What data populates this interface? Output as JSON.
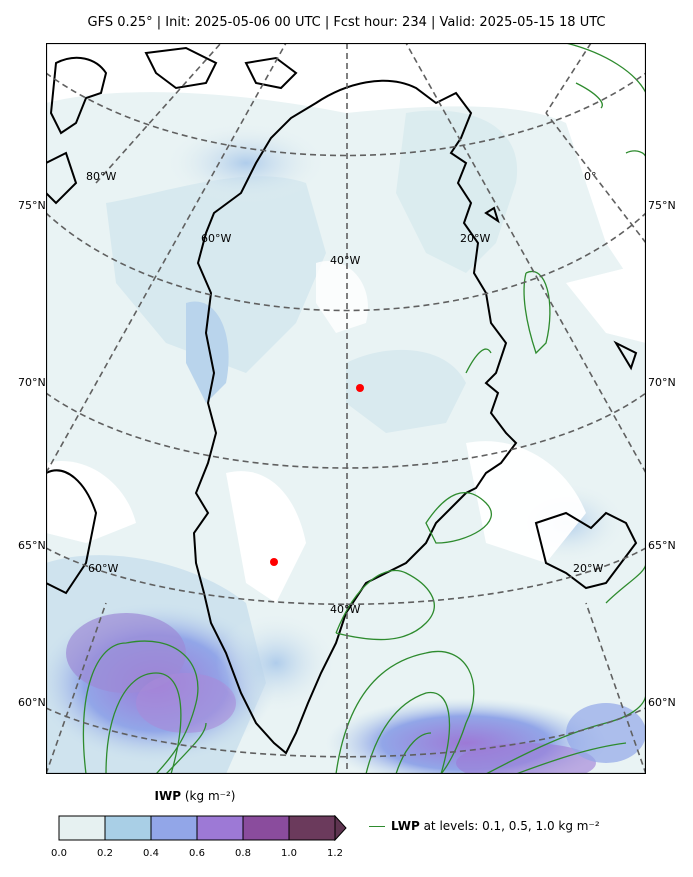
{
  "title": "GFS 0.25°  |  Init: 2025-05-06 00 UTC  |  Fcst hour: 234  |  Valid: 2025-05-15 18 UTC",
  "map": {
    "region": "Greenland",
    "lat_labels_left": [
      "75°N",
      "70°N",
      "65°N",
      "60°N"
    ],
    "lat_labels_right": [
      "75°N",
      "70°N",
      "65°N",
      "60°N"
    ],
    "lon_labels": [
      "80°W",
      "60°W",
      "40°W",
      "20°W",
      "0°",
      "60°W",
      "40°W",
      "20°W"
    ],
    "markers": [
      {
        "name": "red-dot-north",
        "color": "#ff0000"
      },
      {
        "name": "red-dot-south",
        "color": "#ff0000"
      }
    ],
    "coastline_color": "#000000",
    "graticule_color": "#606060",
    "lwp_contour_color": "#2e8b2e"
  },
  "colorbar": {
    "variable": "IWP",
    "units": "(kg m⁻²)",
    "ticks": [
      "0.0",
      "0.2",
      "0.4",
      "0.6",
      "0.8",
      "1.0",
      "1.2"
    ],
    "colors": [
      "#e6f1f1",
      "#a9cfe6",
      "#92a6e8",
      "#9d79d6",
      "#8a4c9d",
      "#6b3a5c"
    ]
  },
  "legend": {
    "variable": "LWP",
    "text": "at levels: 0.1, 0.5, 1.0  kg m⁻²",
    "color": "#2e8b2e"
  }
}
